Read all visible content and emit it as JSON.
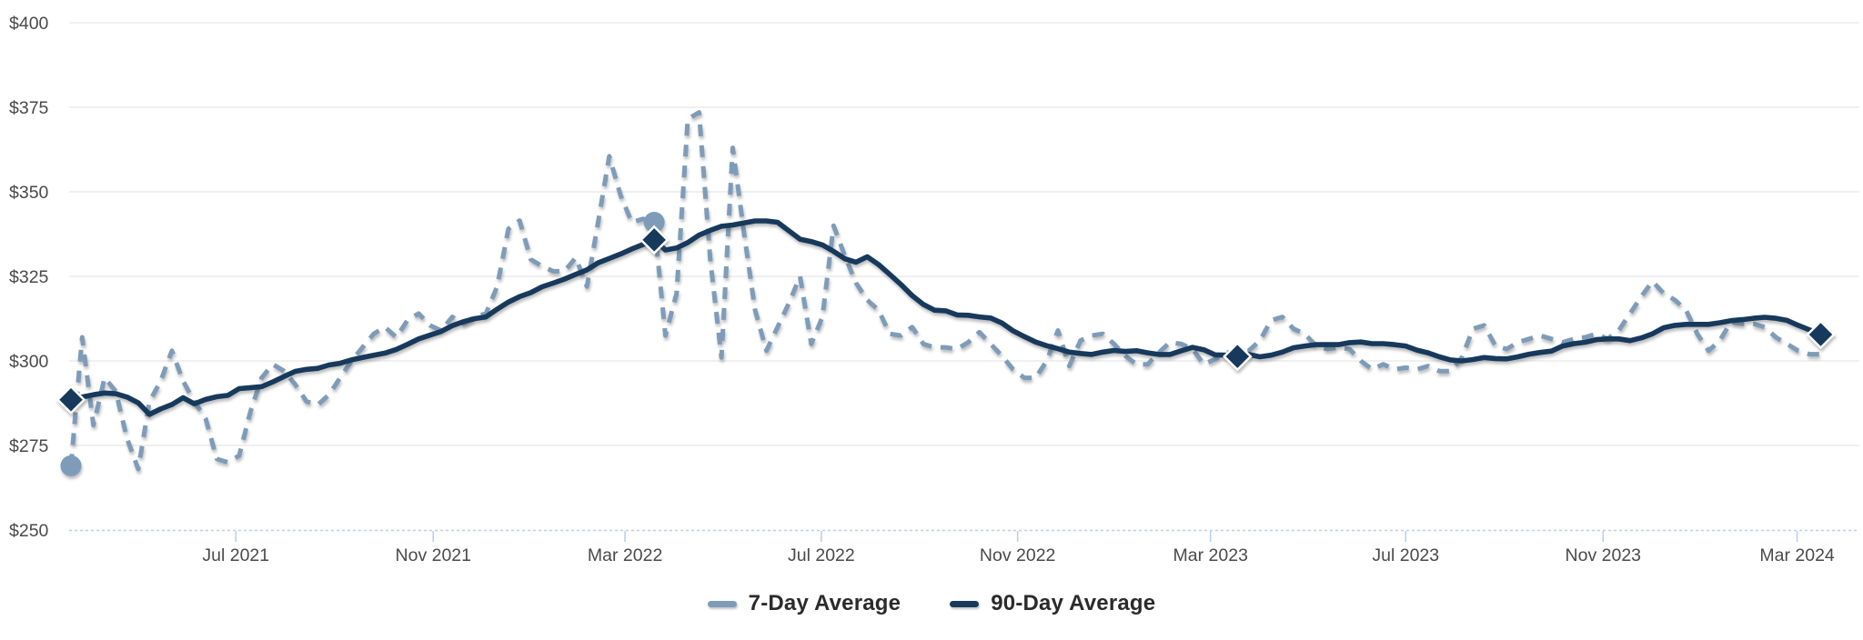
{
  "chart_data": {
    "type": "line",
    "title": "",
    "xlabel": "",
    "ylabel": "",
    "grid": "horizontal",
    "legend_position": "bottom",
    "style": {
      "grid_color": "#e8e8e8",
      "axis_color": "#bdd0e8",
      "label_color": "#4a4a4a",
      "legend_text_color": "#2b2b2b",
      "background": "#ffffff"
    },
    "y_axis": {
      "unit": "USD",
      "range": [
        250,
        400
      ],
      "tick_values": [
        250,
        275,
        300,
        325,
        350,
        375,
        400
      ],
      "tick_labels": [
        "$250",
        "$275",
        "$300",
        "$325",
        "$350",
        "$375",
        "$400"
      ]
    },
    "x_axis": {
      "start_date": "2021-03-20",
      "step_days": 7,
      "tick_labels": [
        "Jul 2021",
        "Nov 2021",
        "Mar 2022",
        "Jul 2022",
        "Nov 2022",
        "Mar 2023",
        "Jul 2023",
        "Nov 2023",
        "Mar 2024"
      ],
      "tick_weeks": [
        14.7,
        32.3,
        49.4,
        66.9,
        84.4,
        101.6,
        119.0,
        136.6,
        153.9
      ]
    },
    "series": [
      {
        "name": "7-Day Average",
        "color": "#7e9cb9",
        "line_style": "dashed",
        "marker": "circle",
        "marker_weeks": [
          0,
          52
        ],
        "values": [
          269,
          307,
          281,
          295,
          291,
          277,
          268,
          288,
          294,
          303,
          294,
          288,
          283,
          271,
          270,
          272,
          285,
          295,
          299,
          297,
          293,
          288,
          287,
          290,
          295,
          300,
          304,
          308,
          310,
          307,
          312,
          314,
          310.5,
          309,
          313,
          311,
          313,
          314,
          322,
          339,
          341.5,
          330,
          328,
          326.5,
          326.5,
          330.5,
          322,
          341,
          360.5,
          349,
          341,
          342,
          341,
          307.5,
          320,
          371.5,
          373.5,
          330,
          301,
          363,
          338,
          315,
          303,
          310,
          317,
          325,
          305,
          313,
          340,
          331,
          323,
          318,
          315,
          308,
          307.5,
          310,
          305,
          304,
          304,
          303.5,
          305.5,
          308.5,
          305,
          301.5,
          297.5,
          295,
          295,
          300,
          309,
          298.5,
          306,
          307.5,
          308,
          305,
          301.5,
          299,
          299,
          302.5,
          305.5,
          305,
          303.5,
          299,
          300.5,
          302.5,
          302.5,
          303,
          306,
          312,
          313,
          309.5,
          308,
          304.5,
          303.5,
          304,
          303.5,
          300,
          297.5,
          299,
          297.5,
          298,
          297.5,
          298.5,
          297,
          297,
          301,
          309.5,
          310.5,
          304.5,
          303.5,
          305.5,
          306.5,
          307.5,
          306.5,
          305.5,
          306.5,
          307,
          308,
          306.5,
          309,
          314,
          319,
          323.5,
          320,
          318,
          315,
          308,
          303,
          306,
          311.5,
          311,
          311,
          310,
          307,
          305,
          303,
          302,
          302
        ]
      },
      {
        "name": "90-Day Average",
        "color": "#16395c",
        "line_style": "solid",
        "marker": "diamond",
        "marker_weeks": [
          0,
          52,
          104,
          156
        ],
        "values": [
          288.5,
          289.3,
          290,
          290.5,
          290.3,
          289.3,
          287.6,
          284.2,
          285.8,
          287.1,
          289.1,
          287.3,
          288.6,
          289.4,
          289.8,
          291.8,
          292.1,
          292.4,
          293.8,
          295.4,
          296.9,
          297.5,
          297.8,
          298.8,
          299.3,
          300.3,
          301,
          301.7,
          302.3,
          303.4,
          304.9,
          306.5,
          307.6,
          308.7,
          310.4,
          311.6,
          312.5,
          313,
          315.3,
          317.4,
          319,
          320.2,
          321.9,
          323,
          324.2,
          325.6,
          326.9,
          329,
          330.3,
          331.6,
          333.1,
          334.4,
          335.8,
          332.8,
          333.4,
          335,
          337.2,
          338.6,
          339.8,
          340.2,
          340.8,
          341.4,
          341.4,
          341,
          338.5,
          336,
          335.3,
          334.3,
          332.4,
          330.2,
          329.2,
          330.8,
          328.5,
          325.6,
          322.6,
          319.3,
          316.7,
          315,
          314.8,
          313.6,
          313.5,
          313,
          312.7,
          311.2,
          308.9,
          307.2,
          305.6,
          304.5,
          303.6,
          302.6,
          302.2,
          301.9,
          302.6,
          303.1,
          302.8,
          303,
          302.4,
          301.9,
          301.9,
          303,
          304,
          303.3,
          301.8,
          301.7,
          301.3,
          301.9,
          301.2,
          301.7,
          302.6,
          303.9,
          304.4,
          304.8,
          304.8,
          304.8,
          305.4,
          305.6,
          305.1,
          305.1,
          304.8,
          304.4,
          303.2,
          302.4,
          301.2,
          300.3,
          300,
          300.4,
          301,
          300.7,
          300.6,
          301.2,
          302,
          302.5,
          302.9,
          304.4,
          305.1,
          305.5,
          306.3,
          306.5,
          306.5,
          306,
          306.8,
          308,
          309.8,
          310.5,
          310.8,
          310.8,
          310.8,
          311.3,
          311.9,
          312.2,
          312.6,
          312.9,
          312.6,
          312,
          310.5,
          309.2,
          307.8
        ]
      }
    ]
  }
}
